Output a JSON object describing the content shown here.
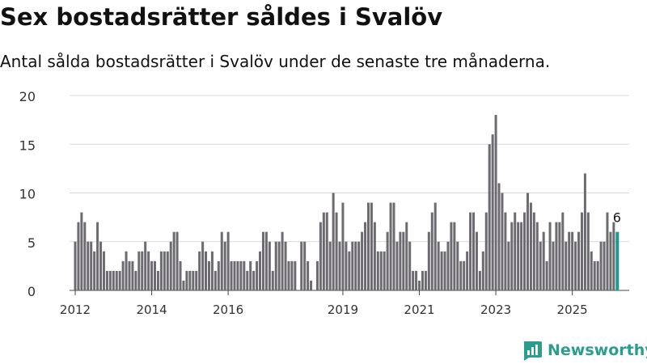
{
  "title": "Sex bostadsrätter såldes i Svalöv",
  "subtitle": "Antal sålda bostadsrätter i Svalöv under de senaste tre månaderna.",
  "brand": "Newsworthy",
  "colors": {
    "bar": "#6d6b70",
    "highlight": "#1a9a8f",
    "grid": "#d9d9d9",
    "brand": "#2a9d8f"
  },
  "chart_data": {
    "type": "bar",
    "xlabel": "",
    "ylabel": "",
    "ylim": [
      0,
      20
    ],
    "y_ticks": [
      "0",
      "5",
      "10",
      "15",
      "20"
    ],
    "x_ticks": [
      {
        "label": "2012",
        "index": 0
      },
      {
        "label": "2014",
        "index": 24
      },
      {
        "label": "2016",
        "index": 48
      },
      {
        "label": "2019",
        "index": 84
      },
      {
        "label": "2021",
        "index": 108
      },
      {
        "label": "2023",
        "index": 132
      },
      {
        "label": "2025",
        "index": 156
      }
    ],
    "start_month": "2012-01",
    "values": [
      5,
      7,
      8,
      7,
      5,
      5,
      4,
      7,
      5,
      4,
      2,
      2,
      2,
      2,
      2,
      3,
      4,
      3,
      3,
      2,
      4,
      4,
      5,
      4,
      3,
      3,
      2,
      4,
      4,
      4,
      5,
      6,
      6,
      3,
      1,
      2,
      2,
      2,
      2,
      4,
      5,
      4,
      3,
      4,
      2,
      3,
      6,
      5,
      6,
      3,
      3,
      3,
      3,
      3,
      2,
      3,
      2,
      3,
      4,
      6,
      6,
      5,
      2,
      5,
      5,
      6,
      5,
      3,
      3,
      3,
      0,
      5,
      5,
      3,
      1,
      0,
      3,
      7,
      8,
      8,
      5,
      10,
      8,
      5,
      9,
      5,
      4,
      5,
      5,
      5,
      6,
      7,
      9,
      9,
      7,
      4,
      4,
      4,
      6,
      9,
      9,
      5,
      6,
      6,
      7,
      5,
      2,
      2,
      1,
      2,
      2,
      6,
      8,
      9,
      5,
      4,
      4,
      5,
      7,
      7,
      5,
      3,
      3,
      4,
      8,
      8,
      6,
      2,
      4,
      8,
      15,
      16,
      18,
      11,
      10,
      8,
      5,
      7,
      8,
      7,
      7,
      8,
      10,
      9,
      8,
      7,
      5,
      6,
      3,
      7,
      5,
      7,
      7,
      8,
      5,
      6,
      6,
      5,
      6,
      8,
      12,
      8,
      4,
      3,
      3,
      5,
      5,
      8,
      6,
      7,
      6
    ],
    "highlight": {
      "index": 170,
      "label": "6"
    }
  }
}
